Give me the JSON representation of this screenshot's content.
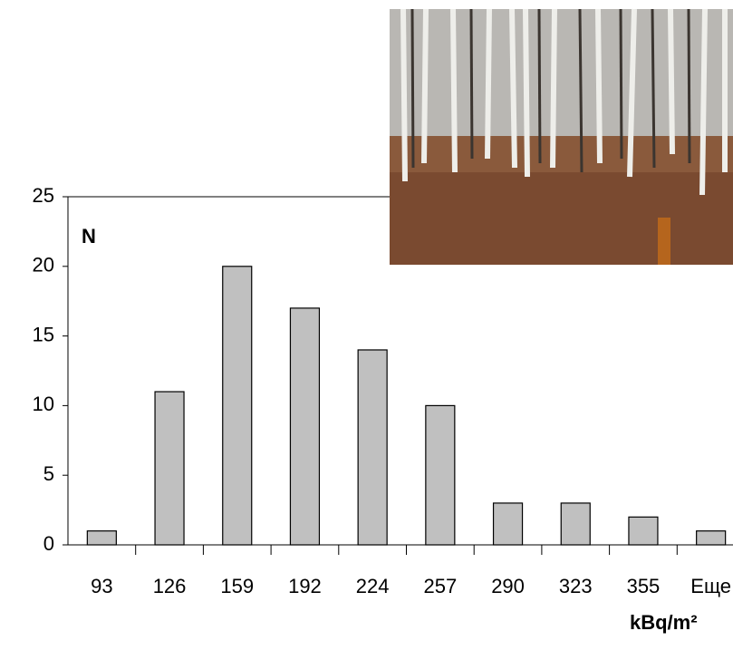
{
  "chart_data": {
    "type": "bar",
    "y_label": "N",
    "x_label": "kBq/m²",
    "categories": [
      "93",
      "126",
      "159",
      "192",
      "224",
      "257",
      "290",
      "323",
      "355",
      "Еще"
    ],
    "values": [
      1,
      11,
      20,
      17,
      14,
      10,
      3,
      3,
      2,
      1
    ],
    "color": "#c0c0c0",
    "ylim": [
      0,
      25
    ],
    "yticks": [
      0,
      5,
      10,
      15,
      20,
      25
    ],
    "grid": false
  }
}
